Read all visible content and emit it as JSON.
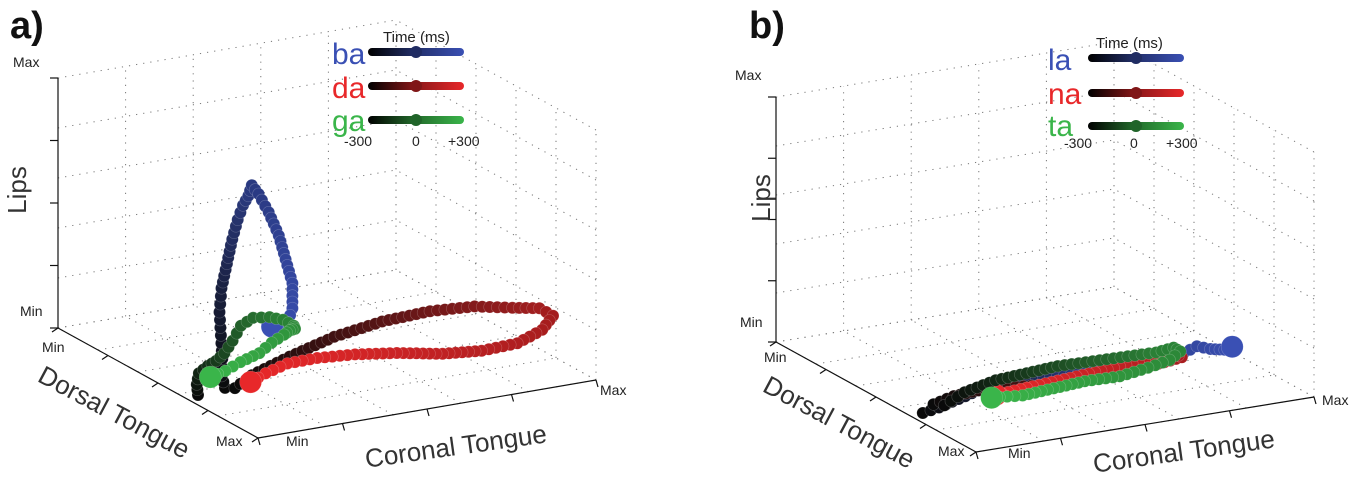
{
  "chart_data": [
    {
      "type": "scatter",
      "panel_label": "a)",
      "zlabel": "Lips",
      "xlabel": "Coronal Tongue",
      "ylabel": "Dorsal Tongue",
      "z_ticks": [
        "Min",
        "Max"
      ],
      "x_ticks": [
        "Min",
        "Max"
      ],
      "y_ticks": [
        "Min",
        "Max"
      ],
      "legend": {
        "title": "Time (ms)",
        "ticks": [
          "-300",
          "0",
          "+300"
        ],
        "entries": [
          {
            "name": "ba",
            "color": "#3a50b4"
          },
          {
            "name": "da",
            "color": "#e8282a"
          },
          {
            "name": "ga",
            "color": "#3ab54a"
          }
        ]
      },
      "grid": true,
      "series": [
        {
          "name": "ba",
          "color": "#3a50b4",
          "x": [
            0.08,
            0.07,
            0.06,
            0.05,
            0.04,
            0.04,
            0.05,
            0.06,
            0.07,
            0.08,
            0.09,
            0.1,
            0.12,
            0.15,
            0.18,
            0.2,
            0.22,
            0.22,
            0.2,
            0.18,
            0.16
          ],
          "y": [
            0.3,
            0.3,
            0.28,
            0.27,
            0.26,
            0.25,
            0.24,
            0.23,
            0.22,
            0.21,
            0.2,
            0.2,
            0.2,
            0.2,
            0.2,
            0.2,
            0.2,
            0.2,
            0.2,
            0.2,
            0.2
          ],
          "z": [
            0.05,
            0.1,
            0.18,
            0.28,
            0.38,
            0.48,
            0.58,
            0.68,
            0.76,
            0.82,
            0.86,
            0.9,
            0.86,
            0.78,
            0.68,
            0.58,
            0.48,
            0.38,
            0.3,
            0.3,
            0.32
          ]
        },
        {
          "name": "da",
          "color": "#e8282a",
          "x": [
            0.05,
            0.1,
            0.2,
            0.32,
            0.45,
            0.58,
            0.7,
            0.8,
            0.88,
            0.92,
            0.9,
            0.85,
            0.78,
            0.7,
            0.6,
            0.5,
            0.4,
            0.3,
            0.2,
            0.12
          ],
          "y": [
            0.2,
            0.2,
            0.18,
            0.16,
            0.14,
            0.12,
            0.1,
            0.08,
            0.08,
            0.08,
            0.1,
            0.14,
            0.2,
            0.26,
            0.32,
            0.36,
            0.38,
            0.36,
            0.3,
            0.24
          ],
          "z": [
            0.1,
            0.14,
            0.2,
            0.26,
            0.3,
            0.32,
            0.32,
            0.3,
            0.28,
            0.24,
            0.18,
            0.12,
            0.08,
            0.06,
            0.06,
            0.06,
            0.06,
            0.07,
            0.08,
            0.09
          ]
        },
        {
          "name": "ga",
          "color": "#3ab54a",
          "x": [
            0.0,
            0.02,
            0.05,
            0.1,
            0.16,
            0.22,
            0.28,
            0.34,
            0.4,
            0.46,
            0.5,
            0.52,
            0.5,
            0.46,
            0.42,
            0.36,
            0.3,
            0.22,
            0.14,
            0.06
          ],
          "y": [
            0.3,
            0.34,
            0.38,
            0.42,
            0.48,
            0.54,
            0.6,
            0.66,
            0.7,
            0.72,
            0.72,
            0.7,
            0.66,
            0.62,
            0.58,
            0.54,
            0.5,
            0.46,
            0.4,
            0.34
          ],
          "z": [
            0.04,
            0.06,
            0.08,
            0.08,
            0.06,
            0.05,
            0.06,
            0.08,
            0.08,
            0.06,
            0.04,
            0.02,
            0.03,
            0.05,
            0.06,
            0.06,
            0.05,
            0.05,
            0.06,
            0.08
          ]
        }
      ]
    },
    {
      "type": "scatter",
      "panel_label": "b)",
      "zlabel": "Lips",
      "xlabel": "Coronal Tongue",
      "ylabel": "Dorsal Tongue",
      "z_ticks": [
        "Min",
        "Max"
      ],
      "x_ticks": [
        "Min",
        "Max"
      ],
      "y_ticks": [
        "Min",
        "Max"
      ],
      "legend": {
        "title": "Time (ms)",
        "ticks": [
          "-300",
          "0",
          "+300"
        ],
        "entries": [
          {
            "name": "la",
            "color": "#3a50b4"
          },
          {
            "name": "na",
            "color": "#e8282a"
          },
          {
            "name": "ta",
            "color": "#3ab54a"
          }
        ]
      },
      "grid": true,
      "series": [
        {
          "name": "la",
          "color": "#3a50b4",
          "x": [
            0.02,
            0.08,
            0.15,
            0.22,
            0.3,
            0.38,
            0.46,
            0.54,
            0.6,
            0.66,
            0.72,
            0.76,
            0.8,
            0.84,
            0.88,
            0.9
          ],
          "y": [
            0.3,
            0.32,
            0.34,
            0.36,
            0.36,
            0.34,
            0.3,
            0.26,
            0.22,
            0.2,
            0.18,
            0.18,
            0.18,
            0.2,
            0.22,
            0.24
          ],
          "z": [
            0.02,
            0.02,
            0.03,
            0.04,
            0.05,
            0.06,
            0.08,
            0.1,
            0.12,
            0.14,
            0.16,
            0.18,
            0.16,
            0.14,
            0.12,
            0.12
          ]
        },
        {
          "name": "na",
          "color": "#e8282a",
          "x": [
            0.04,
            0.1,
            0.18,
            0.26,
            0.34,
            0.42,
            0.5,
            0.58,
            0.64,
            0.68,
            0.66,
            0.6,
            0.52,
            0.44,
            0.36,
            0.28,
            0.2
          ],
          "y": [
            0.28,
            0.28,
            0.26,
            0.24,
            0.22,
            0.2,
            0.18,
            0.16,
            0.14,
            0.12,
            0.12,
            0.14,
            0.16,
            0.18,
            0.2,
            0.22,
            0.24
          ],
          "z": [
            0.06,
            0.08,
            0.1,
            0.1,
            0.1,
            0.1,
            0.12,
            0.14,
            0.16,
            0.18,
            0.2,
            0.18,
            0.16,
            0.14,
            0.12,
            0.1,
            0.08
          ]
        },
        {
          "name": "ta",
          "color": "#3ab54a",
          "x": [
            0.06,
            0.12,
            0.2,
            0.28,
            0.36,
            0.44,
            0.52,
            0.58,
            0.62,
            0.64,
            0.62,
            0.58,
            0.52,
            0.44,
            0.36,
            0.28,
            0.2
          ],
          "y": [
            0.26,
            0.26,
            0.24,
            0.22,
            0.2,
            0.16,
            0.12,
            0.08,
            0.06,
            0.06,
            0.08,
            0.12,
            0.16,
            0.2,
            0.22,
            0.24,
            0.26
          ],
          "z": [
            0.06,
            0.1,
            0.14,
            0.16,
            0.18,
            0.2,
            0.22,
            0.24,
            0.26,
            0.24,
            0.2,
            0.16,
            0.12,
            0.1,
            0.08,
            0.06,
            0.06
          ]
        }
      ]
    }
  ]
}
